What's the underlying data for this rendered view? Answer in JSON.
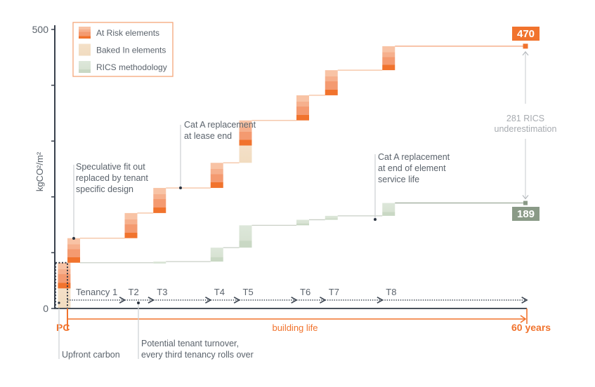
{
  "chart_data": {
    "type": "bar",
    "subtype": "waterfall",
    "title": "",
    "ylabel": "kgCO²/m²",
    "xlabel": "",
    "ylim": [
      0,
      500
    ],
    "y_ticks": [
      0,
      100,
      200,
      300,
      400,
      500
    ],
    "y_tick_labels": [
      "0",
      "",
      "",
      "",
      "",
      "500"
    ],
    "grid": false,
    "legend_position": "top-left",
    "legend": [
      {
        "key": "at_risk",
        "label": "At Risk elements",
        "color": "#f47b2e"
      },
      {
        "key": "baked_in",
        "label": "Baked In elements",
        "color": "#f3dfc5"
      },
      {
        "key": "rics",
        "label": "RICS methodology",
        "color": "#d8e3d4"
      }
    ],
    "timeline_years": 60,
    "tenancies": [
      {
        "label": "Tenancy 1",
        "start_year": 0
      },
      {
        "label": "T2",
        "start_year": 7.5
      },
      {
        "label": "T3",
        "start_year": 11.25
      },
      {
        "label": "T4",
        "start_year": 18.75
      },
      {
        "label": "T5",
        "start_year": 22.5
      },
      {
        "label": "T6",
        "start_year": 30
      },
      {
        "label": "T7",
        "start_year": 33.75
      },
      {
        "label": "T8",
        "start_year": 41.25
      }
    ],
    "series": [
      {
        "name": "At Risk elements",
        "key": "at_risk",
        "steps": [
          {
            "year": -1.25,
            "from": 36,
            "to": 82,
            "label": "PC upfront"
          },
          {
            "year": 0,
            "from": 82,
            "to": 126
          },
          {
            "year": 7.5,
            "from": 126,
            "to": 171
          },
          {
            "year": 11.25,
            "from": 171,
            "to": 216
          },
          {
            "year": 18.75,
            "from": 216,
            "to": 261
          },
          {
            "year": 22.5,
            "from": 292,
            "to": 337
          },
          {
            "year": 30,
            "from": 337,
            "to": 382
          },
          {
            "year": 33.75,
            "from": 382,
            "to": 427
          },
          {
            "year": 41.25,
            "from": 427,
            "to": 470
          }
        ]
      },
      {
        "name": "Baked In elements",
        "key": "baked_in",
        "steps": [
          {
            "year": -1.25,
            "from": 0,
            "to": 36
          },
          {
            "year": 22.5,
            "from": 261,
            "to": 292
          }
        ]
      },
      {
        "name": "RICS methodology",
        "key": "rics",
        "start": 82,
        "steps": [
          {
            "year": 11.25,
            "from": 82,
            "to": 84
          },
          {
            "year": 18.75,
            "from": 84,
            "to": 109
          },
          {
            "year": 22.5,
            "from": 109,
            "to": 149
          },
          {
            "year": 30,
            "from": 149,
            "to": 159
          },
          {
            "year": 33.75,
            "from": 159,
            "to": 166
          },
          {
            "year": 41.25,
            "from": 166,
            "to": 189
          }
        ]
      }
    ],
    "end_values": {
      "at_risk_total": 470,
      "rics_total": 189,
      "difference": 281
    },
    "annotations": [
      {
        "id": "spec-fitout",
        "text_lines": [
          "Speculative fit out",
          "replaced by tenant",
          "specific design"
        ]
      },
      {
        "id": "cat-a-lease",
        "text_lines": [
          "Cat A replacement",
          "at lease end"
        ]
      },
      {
        "id": "cat-a-service",
        "text_lines": [
          "Cat A replacement",
          "at end of element",
          "service life"
        ]
      },
      {
        "id": "rics-under",
        "text_lines": [
          "281 RICS",
          "underestimation"
        ]
      },
      {
        "id": "upfront",
        "text_lines": [
          "Upfront carbon"
        ]
      },
      {
        "id": "turnover",
        "text_lines": [
          "Potential tenant turnover,",
          "every third tenancy rolls over"
        ]
      }
    ],
    "labels": {
      "pc": "PC",
      "building_life": "building life",
      "end": "60 years",
      "total_at_risk": "470",
      "total_rics": "189"
    }
  }
}
